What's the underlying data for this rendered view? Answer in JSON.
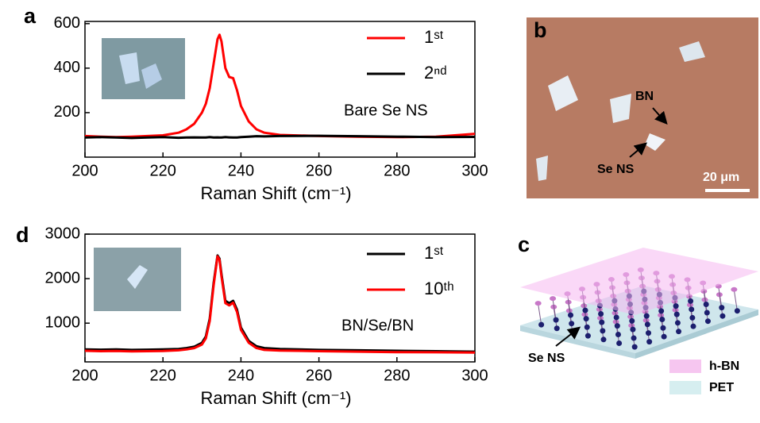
{
  "chart_data": [
    {
      "type": "line",
      "label": "a",
      "xlabel": "Raman Shift (cm⁻¹)",
      "annotation": "Bare Se NS",
      "x": [
        200,
        204,
        208,
        212,
        216,
        220,
        224,
        226,
        228,
        230,
        231,
        232,
        233,
        234,
        234.5,
        235,
        236,
        237,
        238,
        239,
        240,
        242,
        244,
        246,
        250,
        260,
        270,
        280,
        290,
        300
      ],
      "series": [
        {
          "name": "1ˢᵗ",
          "color": "#ff0000",
          "values": [
            95,
            92,
            90,
            92,
            95,
            98,
            110,
            125,
            150,
            200,
            240,
            310,
            420,
            530,
            550,
            520,
            400,
            360,
            355,
            300,
            230,
            160,
            125,
            110,
            100,
            95,
            92,
            90,
            92,
            105
          ]
        },
        {
          "name": "2ⁿᵈ",
          "color": "#000000",
          "values": [
            88,
            90,
            88,
            86,
            88,
            90,
            87,
            88,
            89,
            88,
            88,
            90,
            88,
            89,
            88,
            88,
            90,
            89,
            88,
            88,
            90,
            92,
            94,
            93,
            95,
            96,
            94,
            92,
            90,
            91
          ]
        }
      ],
      "xlim": [
        200,
        300
      ],
      "ylim": [
        0,
        610
      ],
      "xticks": [
        200,
        220,
        240,
        260,
        280,
        300
      ],
      "yticks": [
        200,
        400,
        600
      ],
      "legend": "upper right"
    },
    {
      "type": "line",
      "label": "d",
      "xlabel": "Raman Shift (cm⁻¹)",
      "annotation": "BN/Se/BN",
      "x": [
        200,
        204,
        208,
        212,
        216,
        220,
        224,
        226,
        228,
        230,
        231,
        232,
        233,
        234,
        234.5,
        235,
        236,
        237,
        238,
        239,
        240,
        242,
        244,
        246,
        250,
        260,
        270,
        280,
        290,
        300
      ],
      "series": [
        {
          "name": "1ˢᵗ",
          "color": "#000000",
          "values": [
            410,
            405,
            410,
            400,
            405,
            410,
            420,
            440,
            470,
            560,
            700,
            1100,
            1900,
            2520,
            2450,
            2100,
            1500,
            1450,
            1500,
            1300,
            900,
            600,
            480,
            440,
            420,
            400,
            390,
            380,
            370,
            360
          ]
        },
        {
          "name": "10ᵗʰ",
          "color": "#ff0000",
          "values": [
            380,
            370,
            375,
            365,
            370,
            375,
            390,
            410,
            440,
            520,
            660,
            1050,
            1850,
            2500,
            2420,
            2050,
            1450,
            1400,
            1460,
            1250,
            850,
            560,
            440,
            400,
            385,
            370,
            360,
            350,
            345,
            340
          ]
        }
      ],
      "xlim": [
        200,
        300
      ],
      "ylim": [
        130,
        3000
      ],
      "xticks": [
        200,
        220,
        240,
        260,
        280,
        300
      ],
      "yticks": [
        1000,
        2000,
        3000
      ],
      "legend": "upper right"
    }
  ],
  "image_b": {
    "label": "b",
    "annotations": [
      "BN",
      "Se NS"
    ],
    "scale_bar": "20 μm"
  },
  "diagram_c": {
    "label": "c",
    "annotation": "Se NS",
    "legend": [
      "h-BN",
      "PET"
    ]
  }
}
